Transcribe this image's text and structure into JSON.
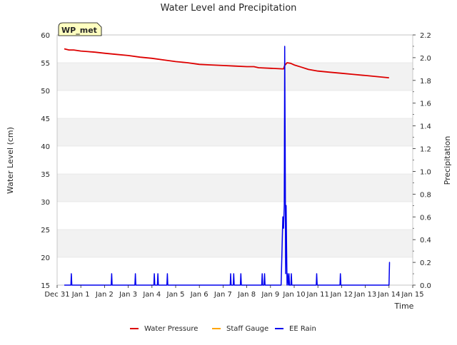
{
  "chart_data": {
    "type": "line",
    "title": "Water Level and Precipitation",
    "xlabel": "Time",
    "ylabel_left": "Water Level (cm)",
    "ylabel_right": "Precipitation",
    "badge": "WP_met",
    "colors": {
      "band": "#f2f2f2",
      "grid": "#dcdcdc",
      "badge_fill": "#ffffc0",
      "badge_text": "#8b0000",
      "water_pressure": "#dd0000",
      "staff_gauge": "#ffa500",
      "ee_rain": "#0000ee"
    },
    "x_range": [
      "Dec 31",
      "Jan 15"
    ],
    "x_ticks": [
      "Dec 31",
      "Jan 1",
      "Jan 2",
      "Jan 3",
      "Jan 4",
      "Jan 5",
      "Jan 6",
      "Jan 7",
      "Jan 8",
      "Jan 9",
      "Jan 10",
      "Jan 11",
      "Jan 12",
      "Jan 13",
      "Jan 14",
      "Jan 15"
    ],
    "ylim_left": [
      15,
      60
    ],
    "yticks_left": [
      "15",
      "20",
      "25",
      "30",
      "35",
      "40",
      "45",
      "50",
      "55",
      "60"
    ],
    "ylim_right": [
      0.0,
      2.2
    ],
    "yticks_right": [
      "0.0",
      "0.2",
      "0.4",
      "0.6",
      "0.8",
      "1.0",
      "1.2",
      "1.4",
      "1.6",
      "1.8",
      "2.0",
      "2.2"
    ],
    "grid": true,
    "legend_position": "bottom-center",
    "legend": [
      "Water Pressure",
      "Staff Gauge",
      "EE Rain"
    ],
    "series": [
      {
        "name": "Water Pressure",
        "axis": "left",
        "x": [
          0.3,
          0.5,
          0.7,
          1.0,
          1.3,
          1.6,
          2.0,
          2.5,
          3.0,
          3.5,
          4.0,
          4.5,
          5.0,
          5.5,
          6.0,
          6.5,
          7.0,
          7.5,
          8.0,
          8.3,
          8.5,
          9.0,
          9.5,
          9.55,
          9.6,
          9.7,
          9.85,
          10.0,
          10.3,
          10.6,
          11.0,
          11.5,
          12.0,
          12.5,
          13.0,
          13.5,
          14.0
        ],
        "y": [
          57.5,
          57.3,
          57.3,
          57.1,
          57.0,
          56.9,
          56.7,
          56.5,
          56.3,
          56.0,
          55.8,
          55.5,
          55.2,
          55.0,
          54.7,
          54.6,
          54.5,
          54.4,
          54.3,
          54.3,
          54.1,
          54.0,
          53.9,
          53.9,
          54.5,
          55.0,
          54.9,
          54.6,
          54.2,
          53.8,
          53.5,
          53.3,
          53.1,
          52.9,
          52.7,
          52.5,
          52.3
        ]
      },
      {
        "name": "Staff Gauge",
        "axis": "left",
        "x": [],
        "y": []
      },
      {
        "name": "EE Rain",
        "axis": "right",
        "x": [
          0.3,
          0.58,
          0.6,
          0.62,
          2.28,
          2.3,
          2.32,
          3.28,
          3.3,
          3.32,
          4.08,
          4.1,
          4.12,
          4.23,
          4.25,
          4.27,
          4.63,
          4.65,
          4.67,
          7.3,
          7.32,
          7.34,
          7.43,
          7.45,
          7.47,
          7.73,
          7.75,
          7.77,
          8.63,
          8.65,
          8.67,
          8.73,
          8.75,
          8.77,
          9.45,
          9.52,
          9.55,
          9.58,
          9.6,
          9.62,
          9.64,
          9.66,
          9.68,
          9.7,
          9.72,
          9.76,
          9.78,
          9.8,
          9.86,
          9.88,
          9.9,
          10.93,
          10.95,
          10.97,
          11.93,
          11.95,
          11.97,
          14.0,
          14.02,
          14.04
        ],
        "y": [
          0,
          0,
          0.1,
          0,
          0,
          0.1,
          0,
          0,
          0.1,
          0,
          0,
          0.1,
          0,
          0,
          0.1,
          0,
          0,
          0.1,
          0,
          0,
          0.1,
          0,
          0,
          0.1,
          0,
          0,
          0.1,
          0,
          0,
          0.1,
          0,
          0,
          0.1,
          0,
          0,
          0.6,
          0.5,
          0.7,
          2.1,
          1.2,
          0.1,
          0.7,
          0.3,
          0,
          0.1,
          0,
          0.1,
          0,
          0,
          0.1,
          0,
          0,
          0.1,
          0,
          0,
          0.1,
          0,
          0,
          0.2,
          0.2
        ]
      }
    ]
  }
}
